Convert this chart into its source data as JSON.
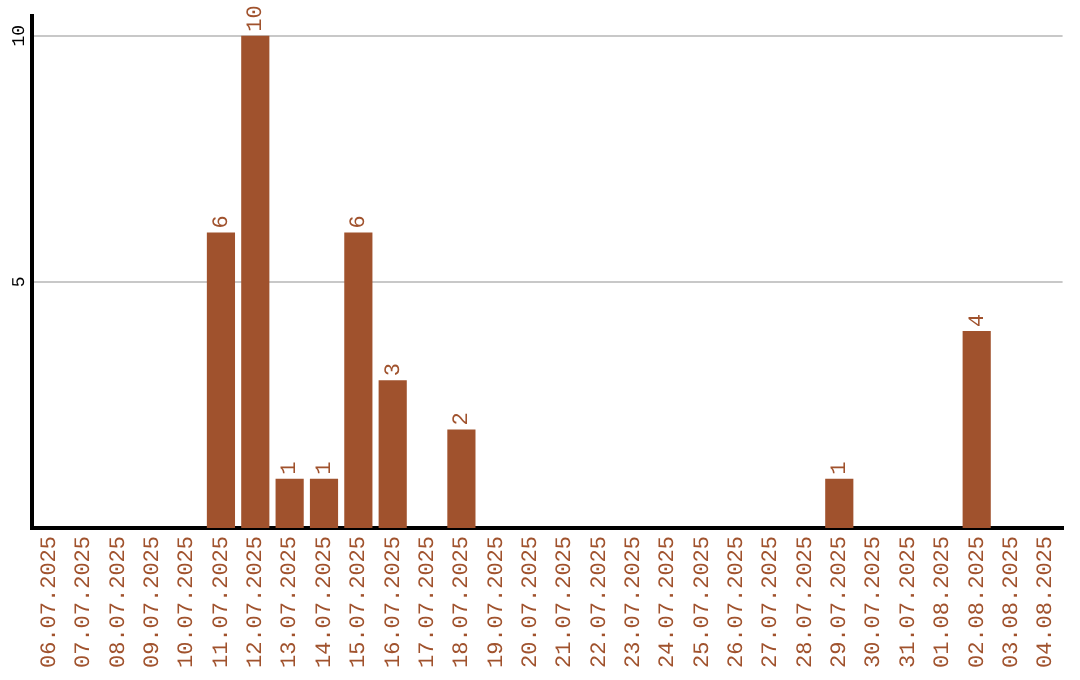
{
  "chart_data": {
    "type": "bar",
    "categories": [
      "06.07.2025",
      "07.07.2025",
      "08.07.2025",
      "09.07.2025",
      "10.07.2025",
      "11.07.2025",
      "12.07.2025",
      "13.07.2025",
      "14.07.2025",
      "15.07.2025",
      "16.07.2025",
      "17.07.2025",
      "18.07.2025",
      "19.07.2025",
      "20.07.2025",
      "21.07.2025",
      "22.07.2025",
      "23.07.2025",
      "24.07.2025",
      "25.07.2025",
      "26.07.2025",
      "27.07.2025",
      "28.07.2025",
      "29.07.2025",
      "30.07.2025",
      "31.07.2025",
      "01.08.2025",
      "02.08.2025",
      "03.08.2025",
      "04.08.2025"
    ],
    "values": [
      0,
      0,
      0,
      0,
      0,
      6,
      10,
      1,
      1,
      6,
      3,
      0,
      2,
      0,
      0,
      0,
      0,
      0,
      0,
      0,
      0,
      0,
      0,
      1,
      0,
      0,
      0,
      4,
      0,
      0
    ],
    "value_labels": [
      null,
      null,
      null,
      null,
      null,
      "6",
      "10",
      "1",
      "1",
      "6",
      "3",
      null,
      "2",
      null,
      null,
      null,
      null,
      null,
      null,
      null,
      null,
      null,
      null,
      "1",
      null,
      null,
      null,
      "4",
      null,
      null
    ],
    "color": "#a0522d",
    "ylim": [
      0,
      10.4
    ],
    "yticks": [
      5,
      10
    ],
    "grid": "y",
    "legend": false
  }
}
